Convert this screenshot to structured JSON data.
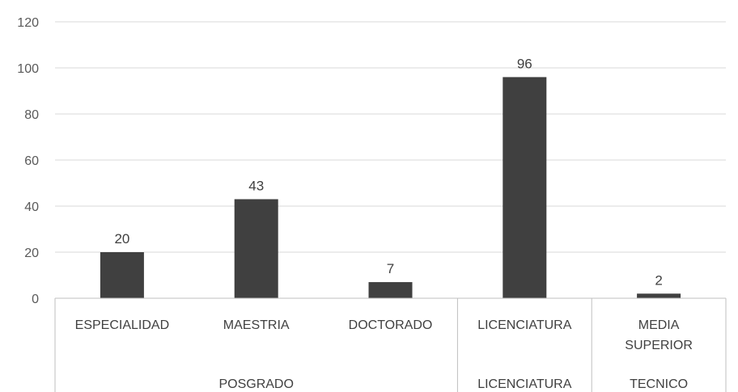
{
  "chart_data": {
    "type": "bar",
    "categories": [
      "ESPECIALIDAD",
      "MAESTRIA",
      "DOCTORADO",
      "LICENCIATURA",
      "MEDIA SUPERIOR"
    ],
    "category_label_lines": [
      [
        "ESPECIALIDAD"
      ],
      [
        "MAESTRIA"
      ],
      [
        "DOCTORADO"
      ],
      [
        "LICENCIATURA"
      ],
      [
        "MEDIA",
        "SUPERIOR"
      ]
    ],
    "groups": [
      {
        "label": "POSGRADO",
        "categories": [
          "ESPECIALIDAD",
          "MAESTRIA",
          "DOCTORADO"
        ]
      },
      {
        "label": "LICENCIATURA",
        "categories": [
          "LICENCIATURA"
        ]
      },
      {
        "label": "TECNICO",
        "categories": [
          "MEDIA SUPERIOR"
        ]
      }
    ],
    "values": [
      20,
      43,
      7,
      96,
      2
    ],
    "data_labels": [
      "20",
      "43",
      "7",
      "96",
      "2"
    ],
    "yticks": [
      0,
      20,
      40,
      60,
      80,
      100,
      120
    ],
    "ylim": [
      0,
      120
    ],
    "title": "",
    "xlabel": "",
    "ylabel": "",
    "grid": true,
    "legend": "none",
    "bar_color": "#404040"
  }
}
